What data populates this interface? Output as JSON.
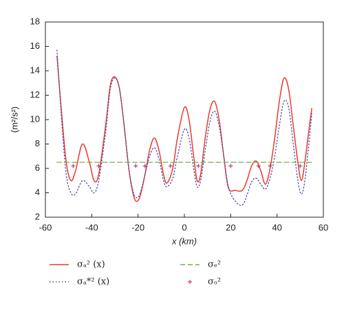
{
  "chart_data": {
    "type": "line",
    "xlabel": "x (km)",
    "ylabel": "(m²/s²)",
    "xlim": [
      -60,
      60
    ],
    "xticks": [
      -60,
      -40,
      -20,
      0,
      20,
      40,
      60
    ],
    "ylim": [
      2,
      18
    ],
    "yticks": [
      2,
      4,
      6,
      8,
      10,
      12,
      14,
      16,
      18
    ],
    "series": [
      {
        "name": "σₐ² (x)",
        "color": "#e8392d",
        "style": "solid",
        "x": [
          -55,
          -53,
          -51,
          -49,
          -47,
          -44,
          -41,
          -39,
          -37,
          -34,
          -32,
          -30,
          -28,
          -26,
          -24,
          -22,
          -20.5,
          -19,
          -17,
          -15,
          -13,
          -11,
          -9,
          -7.5,
          -5,
          -3,
          0,
          2,
          4,
          5.5,
          7,
          9,
          11,
          13,
          15,
          17,
          19,
          22,
          25,
          27,
          29,
          31,
          33,
          35,
          37,
          39,
          41,
          43,
          45,
          47,
          49,
          50.5,
          52,
          54,
          55
        ],
        "values": [
          15.2,
          10.5,
          6.5,
          5.0,
          5.8,
          8.0,
          6.5,
          5.0,
          5.5,
          9.5,
          12.8,
          13.5,
          12.5,
          9.5,
          6.0,
          3.8,
          3.3,
          3.8,
          5.5,
          7.5,
          8.5,
          7.5,
          5.5,
          4.8,
          6.0,
          8.5,
          11.0,
          10.0,
          7.0,
          5.0,
          5.5,
          8.5,
          10.8,
          11.5,
          10.0,
          7.0,
          4.4,
          4.2,
          4.2,
          5.0,
          6.2,
          6.6,
          5.8,
          4.7,
          6.0,
          8.5,
          11.5,
          13.4,
          12.5,
          9.5,
          6.5,
          5.0,
          6.5,
          9.5,
          10.9
        ]
      },
      {
        "name": "σₐ*² (x)",
        "color": "#4a4fb0",
        "style": "dotted",
        "x": [
          -55,
          -53,
          -51,
          -49,
          -47,
          -44,
          -41,
          -39,
          -37,
          -34,
          -32,
          -30,
          -28,
          -26,
          -24,
          -22,
          -20.5,
          -19,
          -17,
          -15,
          -13,
          -11,
          -9,
          -7.5,
          -5,
          -3,
          0,
          2,
          4,
          5.5,
          7,
          9,
          11,
          13,
          15,
          17,
          19,
          22,
          25,
          27,
          29,
          31,
          33,
          35,
          37,
          39,
          41,
          43,
          45,
          47,
          49,
          50.5,
          52,
          54,
          55
        ],
        "values": [
          15.7,
          10.0,
          5.5,
          4.0,
          3.9,
          5.0,
          4.5,
          4.0,
          5.0,
          9.0,
          12.5,
          13.4,
          12.5,
          9.5,
          6.0,
          4.0,
          3.6,
          4.0,
          5.5,
          7.0,
          7.7,
          6.8,
          5.0,
          4.5,
          5.2,
          7.0,
          9.2,
          8.5,
          6.0,
          4.5,
          5.0,
          7.5,
          9.8,
          10.7,
          9.5,
          7.0,
          4.5,
          3.3,
          3.0,
          3.8,
          4.9,
          5.2,
          4.7,
          4.3,
          5.2,
          7.0,
          9.5,
          11.5,
          11.0,
          8.0,
          5.0,
          3.9,
          5.0,
          8.5,
          10.5
        ]
      },
      {
        "name": "σₑ²",
        "color": "#6cb33f",
        "style": "dashed",
        "x": [
          -55,
          55
        ],
        "values": [
          6.5,
          6.5
        ]
      },
      {
        "name": "σₒ²",
        "color": "#c0307a",
        "style": "plus",
        "x": [
          -48,
          -37,
          -21,
          -17,
          -6,
          6,
          20,
          32,
          37,
          50
        ],
        "values": [
          6.2,
          6.2,
          6.2,
          6.2,
          6.2,
          6.2,
          6.2,
          6.2,
          6.2,
          6.2
        ]
      }
    ]
  }
}
